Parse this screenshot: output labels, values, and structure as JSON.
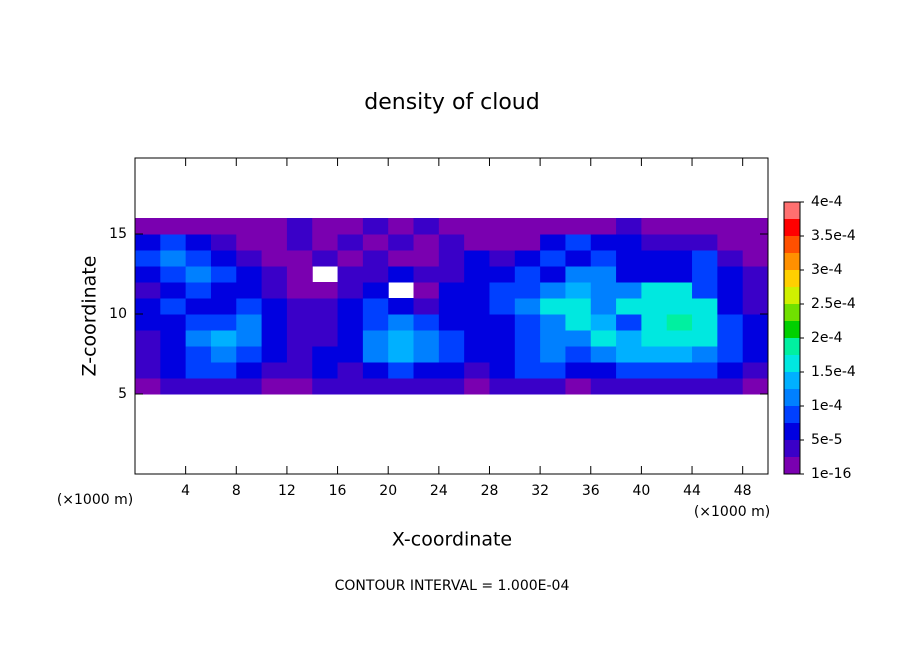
{
  "chart_data": {
    "type": "heatmap",
    "title": "density of cloud",
    "xlabel": "X-coordinate",
    "ylabel": "Z-coordinate",
    "x_unit_labels": [
      "(×1000 m)",
      "(×1000 m)"
    ],
    "footnote": "CONTOUR INTERVAL = 1.000E-04",
    "xlim": [
      0,
      50
    ],
    "ylim": [
      0,
      19.75
    ],
    "xticks": [
      4,
      8,
      12,
      16,
      20,
      24,
      28,
      32,
      36,
      40,
      44,
      48
    ],
    "yticks": [
      5,
      10,
      15
    ],
    "x": [
      1,
      3,
      5,
      7,
      9,
      11,
      13,
      15,
      17,
      19,
      21,
      23,
      25,
      27,
      29,
      31,
      33,
      35,
      37,
      39,
      41,
      43,
      45,
      47,
      49
    ],
    "z": [
      5.5,
      6.5,
      7.5,
      8.5,
      9.5,
      10.5,
      11.5,
      12.5,
      13.5,
      14.5,
      15.5
    ],
    "values": [
      [
        1e-05,
        3.5e-05,
        3.5e-05,
        3.5e-05,
        3.5e-05,
        1e-05,
        1e-05,
        3.5e-05,
        3.5e-05,
        3.5e-05,
        3.5e-05,
        3.5e-05,
        3.5e-05,
        1e-05,
        3.5e-05,
        3.5e-05,
        3.5e-05,
        1e-05,
        3.5e-05,
        3.5e-05,
        3.5e-05,
        3.5e-05,
        3.5e-05,
        3.5e-05,
        1e-05
      ],
      [
        3.5e-05,
        6e-05,
        9e-05,
        9e-05,
        6e-05,
        3.5e-05,
        3.5e-05,
        6e-05,
        3.5e-05,
        6e-05,
        9e-05,
        6e-05,
        6e-05,
        3.5e-05,
        6e-05,
        9e-05,
        9e-05,
        6e-05,
        6e-05,
        9e-05,
        9e-05,
        9e-05,
        9e-05,
        6e-05,
        3.5e-05
      ],
      [
        3.5e-05,
        6e-05,
        9e-05,
        0.00011,
        9e-05,
        6e-05,
        3.5e-05,
        6e-05,
        6e-05,
        0.00011,
        0.00014,
        0.00011,
        9e-05,
        6e-05,
        6e-05,
        9e-05,
        0.00011,
        9e-05,
        0.00011,
        0.00014,
        0.00014,
        0.00014,
        0.00011,
        9e-05,
        6e-05
      ],
      [
        3.5e-05,
        6e-05,
        0.00011,
        0.00014,
        0.00011,
        6e-05,
        3.5e-05,
        3.5e-05,
        6e-05,
        0.00011,
        0.00014,
        0.00011,
        9e-05,
        6e-05,
        6e-05,
        9e-05,
        0.00011,
        0.00011,
        0.00016,
        0.00014,
        0.00016,
        0.00016,
        0.00016,
        9e-05,
        6e-05
      ],
      [
        6e-05,
        6e-05,
        9e-05,
        9e-05,
        0.00011,
        6e-05,
        3.5e-05,
        3.5e-05,
        6e-05,
        9e-05,
        0.00011,
        9e-05,
        6e-05,
        6e-05,
        6e-05,
        9e-05,
        0.00011,
        0.00016,
        0.00014,
        9e-05,
        0.00016,
        0.00018,
        0.00016,
        9e-05,
        6e-05
      ],
      [
        6e-05,
        9e-05,
        6e-05,
        6e-05,
        9e-05,
        6e-05,
        3.5e-05,
        3.5e-05,
        6e-05,
        9e-05,
        6e-05,
        3.5e-05,
        6e-05,
        6e-05,
        9e-05,
        0.00011,
        0.00016,
        0.00016,
        0.00011,
        0.00016,
        0.00016,
        0.00016,
        0.00016,
        6e-05,
        3.5e-05
      ],
      [
        3.5e-05,
        6e-05,
        9e-05,
        6e-05,
        6e-05,
        3.5e-05,
        1e-05,
        1e-05,
        3.5e-05,
        6e-05,
        null,
        1e-05,
        6e-05,
        6e-05,
        9e-05,
        9e-05,
        0.00011,
        0.00014,
        0.00011,
        0.00011,
        0.00016,
        0.00016,
        9e-05,
        6e-05,
        3.5e-05
      ],
      [
        6e-05,
        9e-05,
        0.00011,
        9e-05,
        6e-05,
        3.5e-05,
        1e-05,
        null,
        3.5e-05,
        3.5e-05,
        6e-05,
        3.5e-05,
        3.5e-05,
        6e-05,
        6e-05,
        9e-05,
        6e-05,
        0.00011,
        0.00011,
        6e-05,
        6e-05,
        6e-05,
        9e-05,
        6e-05,
        3.5e-05
      ],
      [
        9e-05,
        0.00011,
        9e-05,
        6e-05,
        3.5e-05,
        1e-05,
        1e-05,
        3.5e-05,
        1e-05,
        3.5e-05,
        1e-05,
        1e-05,
        3.5e-05,
        6e-05,
        3.5e-05,
        6e-05,
        9e-05,
        6e-05,
        9e-05,
        6e-05,
        6e-05,
        6e-05,
        9e-05,
        3.5e-05,
        1e-05
      ],
      [
        6e-05,
        9e-05,
        6e-05,
        3.5e-05,
        1e-05,
        1e-05,
        3.5e-05,
        1e-05,
        3.5e-05,
        1e-05,
        3.5e-05,
        1e-05,
        3.5e-05,
        1e-05,
        1e-05,
        1e-05,
        6e-05,
        9e-05,
        6e-05,
        6e-05,
        3.5e-05,
        3.5e-05,
        3.5e-05,
        1e-05,
        1e-05
      ],
      [
        1e-05,
        1e-05,
        1e-05,
        1e-05,
        1e-05,
        1e-05,
        3.5e-05,
        1e-05,
        1e-05,
        3.5e-05,
        1e-05,
        3.5e-05,
        1e-05,
        1e-05,
        1e-05,
        1e-05,
        1e-05,
        1e-05,
        1e-05,
        3.5e-05,
        1e-05,
        1e-05,
        1e-05,
        1e-05,
        1e-05
      ]
    ],
    "levels": [
      1e-16,
      2.5e-05,
      5e-05,
      7.5e-05,
      0.0001,
      0.000125,
      0.00015,
      0.000175,
      0.0002,
      0.000225,
      0.00025,
      0.000275,
      0.0003,
      0.000325,
      0.00035,
      0.000375,
      0.0004
    ],
    "colors": [
      "#7a00b0",
      "#3a00c8",
      "#0000e0",
      "#0040ff",
      "#0080ff",
      "#00b0ff",
      "#00e8e0",
      "#00f0a0",
      "#00d000",
      "#70e000",
      "#d0f000",
      "#ffd000",
      "#ff9000",
      "#ff5000",
      "#ff0000",
      "#ff7070"
    ],
    "colorbar_ticks": [
      {
        "value": 1e-16,
        "label": "1e-16"
      },
      {
        "value": 5e-05,
        "label": "5e-5"
      },
      {
        "value": 0.0001,
        "label": "1e-4"
      },
      {
        "value": 0.00015,
        "label": "1.5e-4"
      },
      {
        "value": 0.0002,
        "label": "2e-4"
      },
      {
        "value": 0.00025,
        "label": "2.5e-4"
      },
      {
        "value": 0.0003,
        "label": "3e-4"
      },
      {
        "value": 0.00035,
        "label": "3.5e-4"
      },
      {
        "value": 0.0004,
        "label": "4e-4"
      }
    ]
  }
}
